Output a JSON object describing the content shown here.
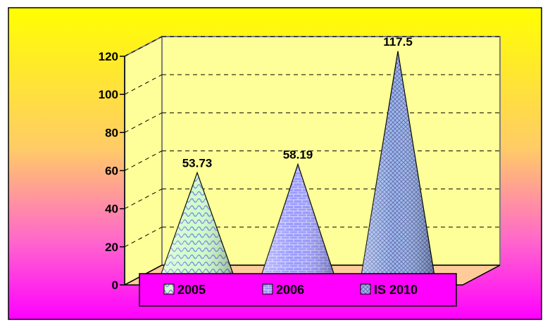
{
  "chart_data": {
    "type": "bar",
    "style": "3d-cone",
    "categories": [
      "2005",
      "2006",
      "IS 2010"
    ],
    "values": [
      53.73,
      58.19,
      117.5
    ],
    "data_labels": [
      "53.73",
      "58.19",
      "117.5"
    ],
    "ylim": [
      0,
      120
    ],
    "yticks": [
      "0",
      "20",
      "40",
      "60",
      "80",
      "100",
      "120"
    ],
    "grid": true,
    "legend_position": "bottom",
    "legend": [
      "2005",
      "2006",
      "IS 2010"
    ],
    "colors": {
      "background_top": "#FFFF00",
      "background_bottom": "#FF00FF",
      "floor": "#FFCC99",
      "legend_bg": "#FF00FF",
      "cone_2005": "#CCFFCC",
      "cone_2006": "#9999FF",
      "cone_2010": "#99CCFF"
    }
  }
}
